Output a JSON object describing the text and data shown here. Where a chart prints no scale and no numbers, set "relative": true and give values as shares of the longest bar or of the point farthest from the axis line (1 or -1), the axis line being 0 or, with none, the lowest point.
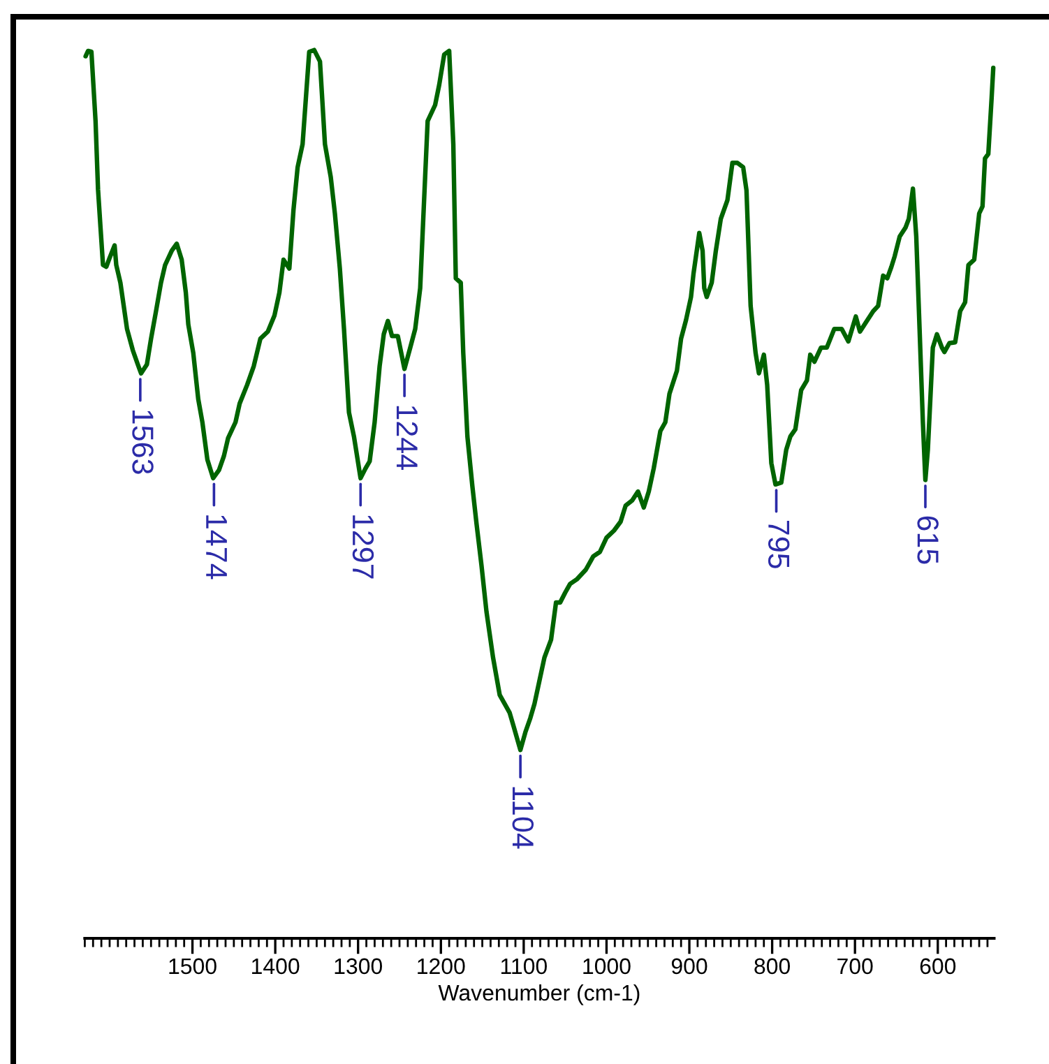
{
  "chart_data": {
    "type": "line",
    "xlabel": "Wavenumber (cm-1)",
    "relative": true,
    "xlim": [
      1630,
      532
    ],
    "xticks": [
      {
        "value": 1630,
        "label": null
      },
      {
        "value": 1620,
        "label": null
      },
      {
        "value": 1610,
        "label": null
      },
      {
        "value": 1600,
        "label": null
      },
      {
        "value": 1590,
        "label": null
      },
      {
        "value": 1580,
        "label": null
      },
      {
        "value": 1570,
        "label": null
      },
      {
        "value": 1560,
        "label": null
      },
      {
        "value": 1550,
        "label": null
      },
      {
        "value": 1540,
        "label": null
      },
      {
        "value": 1530,
        "label": null
      },
      {
        "value": 1520,
        "label": null
      },
      {
        "value": 1510,
        "label": null
      },
      1500,
      {
        "value": 1490,
        "label": null
      },
      {
        "value": 1480,
        "label": null
      },
      {
        "value": 1470,
        "label": null
      },
      {
        "value": 1460,
        "label": null
      },
      {
        "value": 1450,
        "label": null
      },
      {
        "value": 1440,
        "label": null
      },
      {
        "value": 1430,
        "label": null
      },
      {
        "value": 1420,
        "label": null
      },
      {
        "value": 1410,
        "label": null
      },
      1400,
      {
        "value": 1390,
        "label": null
      },
      {
        "value": 1380,
        "label": null
      },
      {
        "value": 1370,
        "label": null
      },
      {
        "value": 1360,
        "label": null
      },
      {
        "value": 1350,
        "label": null
      },
      {
        "value": 1340,
        "label": null
      },
      {
        "value": 1330,
        "label": null
      },
      {
        "value": 1320,
        "label": null
      },
      {
        "value": 1310,
        "label": null
      },
      1300,
      {
        "value": 1290,
        "label": null
      },
      {
        "value": 1280,
        "label": null
      },
      {
        "value": 1270,
        "label": null
      },
      {
        "value": 1260,
        "label": null
      },
      {
        "value": 1250,
        "label": null
      },
      {
        "value": 1240,
        "label": null
      },
      {
        "value": 1230,
        "label": null
      },
      {
        "value": 1220,
        "label": null
      },
      {
        "value": 1210,
        "label": null
      },
      1200,
      {
        "value": 1190,
        "label": null
      },
      {
        "value": 1180,
        "label": null
      },
      {
        "value": 1170,
        "label": null
      },
      {
        "value": 1160,
        "label": null
      },
      {
        "value": 1150,
        "label": null
      },
      {
        "value": 1140,
        "label": null
      },
      {
        "value": 1130,
        "label": null
      },
      {
        "value": 1120,
        "label": null
      },
      {
        "value": 1110,
        "label": null
      },
      1100,
      {
        "value": 1090,
        "label": null
      },
      {
        "value": 1080,
        "label": null
      },
      {
        "value": 1070,
        "label": null
      },
      {
        "value": 1060,
        "label": null
      },
      {
        "value": 1050,
        "label": null
      },
      {
        "value": 1040,
        "label": null
      },
      {
        "value": 1030,
        "label": null
      },
      {
        "value": 1020,
        "label": null
      },
      {
        "value": 1010,
        "label": null
      },
      1000,
      {
        "value": 990,
        "label": null
      },
      {
        "value": 980,
        "label": null
      },
      {
        "value": 970,
        "label": null
      },
      {
        "value": 960,
        "label": null
      },
      {
        "value": 950,
        "label": null
      },
      {
        "value": 940,
        "label": null
      },
      {
        "value": 930,
        "label": null
      },
      {
        "value": 920,
        "label": null
      },
      {
        "value": 910,
        "label": null
      },
      900,
      {
        "value": 890,
        "label": null
      },
      {
        "value": 880,
        "label": null
      },
      {
        "value": 870,
        "label": null
      },
      {
        "value": 860,
        "label": null
      },
      {
        "value": 850,
        "label": null
      },
      {
        "value": 840,
        "label": null
      },
      {
        "value": 830,
        "label": null
      },
      {
        "value": 820,
        "label": null
      },
      {
        "value": 810,
        "label": null
      },
      800,
      {
        "value": 790,
        "label": null
      },
      {
        "value": 780,
        "label": null
      },
      {
        "value": 770,
        "label": null
      },
      {
        "value": 760,
        "label": null
      },
      {
        "value": 750,
        "label": null
      },
      {
        "value": 740,
        "label": null
      },
      {
        "value": 730,
        "label": null
      },
      {
        "value": 720,
        "label": null
      },
      {
        "value": 710,
        "label": null
      },
      700,
      {
        "value": 690,
        "label": null
      },
      {
        "value": 680,
        "label": null
      },
      {
        "value": 670,
        "label": null
      },
      {
        "value": 660,
        "label": null
      },
      {
        "value": 650,
        "label": null
      },
      {
        "value": 640,
        "label": null
      },
      {
        "value": 630,
        "label": null
      },
      {
        "value": 620,
        "label": null
      },
      {
        "value": 610,
        "label": null
      },
      600,
      {
        "value": 590,
        "label": null
      },
      {
        "value": 580,
        "label": null
      },
      {
        "value": 570,
        "label": null
      },
      {
        "value": 560,
        "label": null
      },
      {
        "value": 550,
        "label": null
      },
      {
        "value": 540,
        "label": null
      }
    ],
    "x": [
      1629,
      1626,
      1622,
      1617,
      1614,
      1611,
      1608,
      1604,
      1600,
      1594,
      1592,
      1587,
      1583,
      1579,
      1572,
      1566,
      1562,
      1555,
      1550,
      1544,
      1538,
      1533,
      1525,
      1519,
      1513,
      1508,
      1505,
      1499,
      1493,
      1488,
      1482,
      1475,
      1468,
      1462,
      1457,
      1448,
      1443,
      1434,
      1426,
      1418,
      1409,
      1401,
      1395,
      1390,
      1383,
      1378,
      1373,
      1367,
      1363,
      1359,
      1353,
      1346,
      1340,
      1333,
      1328,
      1322,
      1317,
      1311,
      1305,
      1297,
      1291,
      1286,
      1280,
      1274,
      1269,
      1264,
      1259,
      1252,
      1244,
      1237,
      1231,
      1225,
      1221,
      1216,
      1207,
      1202,
      1196,
      1190,
      1185,
      1182,
      1176,
      1173,
      1168,
      1162,
      1157,
      1151,
      1145,
      1137,
      1129,
      1117,
      1112,
      1104,
      1098,
      1092,
      1087,
      1081,
      1075,
      1067,
      1061,
      1056,
      1050,
      1044,
      1036,
      1025,
      1016,
      1008,
      1000,
      991,
      983,
      977,
      969,
      962,
      955,
      949,
      943,
      935,
      929,
      924,
      915,
      910,
      904,
      898,
      895,
      888,
      884,
      882,
      879,
      873,
      868,
      862,
      854,
      848,
      842,
      835,
      831,
      826,
      820,
      816,
      810,
      806,
      801,
      796,
      789,
      783,
      778,
      772,
      765,
      758,
      754,
      749,
      741,
      734,
      725,
      716,
      708,
      699,
      694,
      685,
      678,
      672,
      666,
      661,
      656,
      652,
      646,
      639,
      635,
      630,
      626,
      622,
      618,
      615,
      612,
      609,
      606,
      601,
      595,
      592,
      586,
      579,
      573,
      567,
      563,
      556,
      550,
      546,
      543,
      539,
      535,
      533
    ],
    "series": [
      {
        "color": "#006400",
        "values": [
          0.993,
          0.999,
          0.998,
          0.92,
          0.843,
          0.8,
          0.758,
          0.756,
          0.766,
          0.78,
          0.758,
          0.738,
          0.712,
          0.686,
          0.662,
          0.646,
          0.636,
          0.646,
          0.675,
          0.706,
          0.738,
          0.758,
          0.774,
          0.782,
          0.764,
          0.727,
          0.691,
          0.659,
          0.607,
          0.581,
          0.539,
          0.518,
          0.527,
          0.543,
          0.563,
          0.581,
          0.602,
          0.623,
          0.644,
          0.675,
          0.683,
          0.701,
          0.727,
          0.764,
          0.754,
          0.82,
          0.868,
          0.894,
          0.946,
          0.998,
          1.0,
          0.987,
          0.894,
          0.857,
          0.816,
          0.754,
          0.686,
          0.592,
          0.565,
          0.518,
          0.529,
          0.537,
          0.581,
          0.644,
          0.68,
          0.695,
          0.678,
          0.678,
          0.641,
          0.665,
          0.686,
          0.732,
          0.816,
          0.92,
          0.938,
          0.961,
          0.995,
          0.999,
          0.894,
          0.743,
          0.738,
          0.659,
          0.565,
          0.509,
          0.467,
          0.42,
          0.368,
          0.316,
          0.274,
          0.254,
          0.238,
          0.212,
          0.232,
          0.248,
          0.264,
          0.29,
          0.316,
          0.336,
          0.378,
          0.378,
          0.389,
          0.399,
          0.404,
          0.415,
          0.43,
          0.435,
          0.451,
          0.459,
          0.469,
          0.487,
          0.493,
          0.503,
          0.485,
          0.503,
          0.529,
          0.571,
          0.581,
          0.613,
          0.639,
          0.675,
          0.696,
          0.722,
          0.748,
          0.794,
          0.774,
          0.732,
          0.722,
          0.738,
          0.774,
          0.81,
          0.831,
          0.873,
          0.873,
          0.868,
          0.842,
          0.712,
          0.659,
          0.636,
          0.657,
          0.623,
          0.535,
          0.511,
          0.513,
          0.55,
          0.565,
          0.573,
          0.617,
          0.628,
          0.657,
          0.649,
          0.665,
          0.665,
          0.686,
          0.686,
          0.672,
          0.7,
          0.683,
          0.696,
          0.706,
          0.712,
          0.746,
          0.743,
          0.756,
          0.768,
          0.79,
          0.8,
          0.81,
          0.844,
          0.79,
          0.686,
          0.581,
          0.516,
          0.55,
          0.607,
          0.665,
          0.68,
          0.665,
          0.66,
          0.67,
          0.671,
          0.706,
          0.716,
          0.758,
          0.764,
          0.816,
          0.824,
          0.878,
          0.883,
          0.946,
          0.98
        ]
      }
    ],
    "annotations": [
      {
        "text": "1563",
        "x": 1563,
        "y": 0.636
      },
      {
        "text": "1474",
        "x": 1474,
        "y": 0.518
      },
      {
        "text": "1297",
        "x": 1297,
        "y": 0.518
      },
      {
        "text": "1244",
        "x": 1244,
        "y": 0.641
      },
      {
        "text": "1104",
        "x": 1104,
        "y": 0.212
      },
      {
        "text": "795",
        "x": 795,
        "y": 0.511
      },
      {
        "text": "615",
        "x": 615,
        "y": 0.516
      }
    ]
  }
}
